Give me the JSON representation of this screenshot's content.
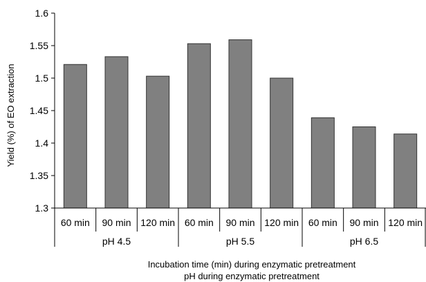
{
  "chart_data": {
    "type": "bar",
    "title": "",
    "ylabel": "Yield (%) of EO extraction",
    "xlabel_lines": [
      "Incubation time (min) during enzymatic pretreatment",
      "pH during enzymatic pretreatment"
    ],
    "ylim": [
      1.3,
      1.6
    ],
    "yticks": [
      1.3,
      1.35,
      1.4,
      1.45,
      1.5,
      1.55,
      1.6
    ],
    "ytick_labels": [
      "1.3",
      "1.35",
      "1.4",
      "1.45",
      "1.5",
      "1.55",
      "1.6"
    ],
    "grid": false,
    "groups": [
      "pH 4.5",
      "pH 5.5",
      "pH 6.5"
    ],
    "categories": [
      "60 min",
      "90 min",
      "120 min",
      "60 min",
      "90 min",
      "120 min",
      "60 min",
      "90 min",
      "120 min"
    ],
    "values": [
      1.521,
      1.533,
      1.503,
      1.553,
      1.559,
      1.5,
      1.439,
      1.425,
      1.414
    ],
    "bar_color": "#808080",
    "bar_edge_color": "#333333"
  }
}
